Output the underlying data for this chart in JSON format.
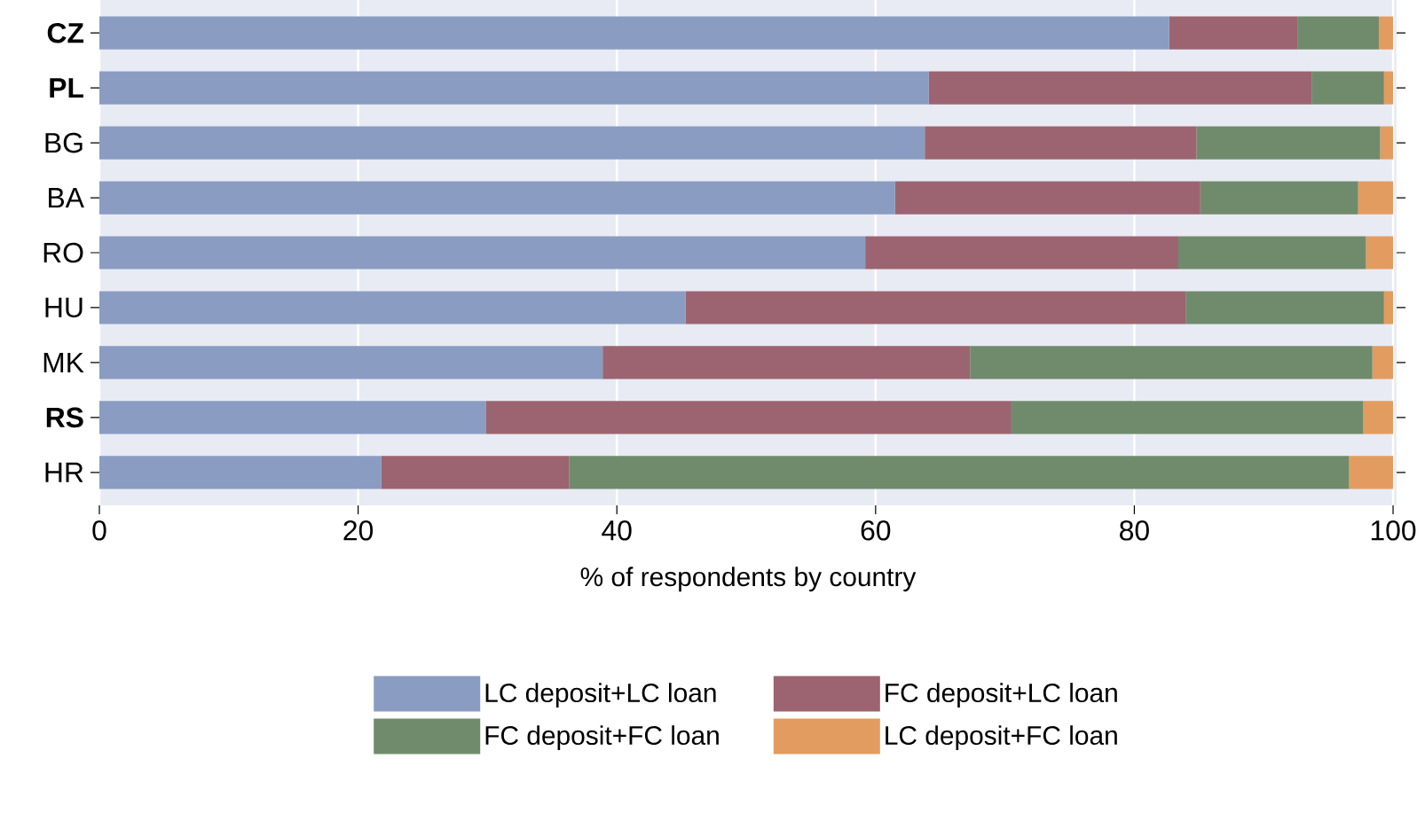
{
  "chart_data": {
    "type": "bar",
    "orientation": "horizontal",
    "stacked": true,
    "xlabel": "% of respondents by country",
    "categories": [
      "**CZ**",
      "**PL**",
      "BG",
      "BA",
      "RO",
      "HU",
      "MK",
      "**RS**",
      "HR"
    ],
    "series": [
      {
        "name": "LC deposit+LC loan",
        "color": "#8a9cc2",
        "values": [
          82.7,
          64.1,
          63.8,
          61.5,
          59.2,
          45.3,
          38.9,
          29.9,
          21.8
        ]
      },
      {
        "name": "FC deposit+LC loan",
        "color": "#9c6470",
        "values": [
          9.9,
          29.6,
          21.0,
          23.6,
          24.2,
          38.7,
          28.4,
          40.6,
          14.5
        ]
      },
      {
        "name": "FC deposit+FC loan",
        "color": "#708b6c",
        "values": [
          6.3,
          5.6,
          14.2,
          12.2,
          14.5,
          15.3,
          31.1,
          27.2,
          60.3
        ]
      },
      {
        "name": "LC deposit+FC loan",
        "color": "#e39c60",
        "values": [
          1.1,
          0.7,
          1.0,
          2.7,
          2.1,
          0.7,
          1.6,
          2.3,
          3.4
        ]
      }
    ],
    "xlim": [
      0,
      100
    ],
    "xticks": [
      0,
      20,
      40,
      60,
      80,
      100
    ],
    "grid": "x",
    "legend": "bottom"
  }
}
